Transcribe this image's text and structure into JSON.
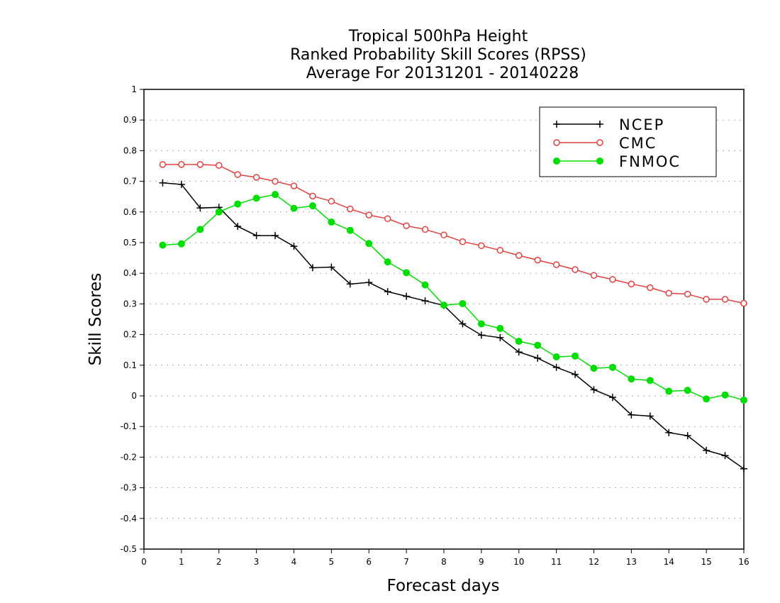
{
  "chart_data": {
    "type": "line",
    "title": [
      "Tropical 500hPa Height",
      "Ranked Probability Skill Scores (RPSS)",
      "Average For 20131201 - 20140228"
    ],
    "xlabel": "Forecast days",
    "ylabel": "Skill Scores",
    "xlim": [
      0,
      16
    ],
    "ylim": [
      -0.5,
      1
    ],
    "xticks": [
      "0",
      "1",
      "2",
      "3",
      "4",
      "5",
      "6",
      "7",
      "8",
      "9",
      "10",
      "11",
      "12",
      "13",
      "14",
      "15",
      "16"
    ],
    "yticks": [
      "-0.5",
      "-0.4",
      "-0.3",
      "-0.2",
      "-0.1",
      "0",
      "0.1",
      "0.2",
      "0.3",
      "0.4",
      "0.5",
      "0.6",
      "0.7",
      "0.8",
      "0.9",
      "1"
    ],
    "grid": true,
    "legend_position": "top-right",
    "x": [
      0.5,
      1,
      1.5,
      2,
      2.5,
      3,
      3.5,
      4,
      4.5,
      5,
      5.5,
      6,
      6.5,
      7,
      7.5,
      8,
      8.5,
      9,
      9.5,
      10,
      10.5,
      11,
      11.5,
      12,
      12.5,
      13,
      13.5,
      14,
      14.5,
      15,
      15.5,
      16
    ],
    "series": [
      {
        "name": "NCEP",
        "color": "#000000",
        "marker": "plus",
        "values": [
          0.695,
          0.69,
          0.613,
          0.615,
          0.553,
          0.523,
          0.523,
          0.488,
          0.418,
          0.42,
          0.365,
          0.37,
          0.34,
          0.325,
          0.31,
          0.295,
          0.235,
          0.198,
          0.19,
          0.143,
          0.123,
          0.093,
          0.07,
          0.02,
          -0.005,
          -0.062,
          -0.066,
          -0.12,
          -0.13,
          -0.178,
          -0.195,
          -0.238
        ]
      },
      {
        "name": "CMC",
        "color": "#e04040",
        "marker": "open-circle",
        "values": [
          0.755,
          0.755,
          0.755,
          0.752,
          0.722,
          0.713,
          0.7,
          0.685,
          0.652,
          0.635,
          0.61,
          0.59,
          0.578,
          0.555,
          0.543,
          0.525,
          0.503,
          0.49,
          0.475,
          0.458,
          0.443,
          0.428,
          0.412,
          0.393,
          0.38,
          0.365,
          0.353,
          0.335,
          0.332,
          0.315,
          0.315,
          0.302
        ]
      },
      {
        "name": "FNMOC",
        "color": "#00dd00",
        "marker": "filled-circle",
        "values": [
          0.492,
          0.496,
          0.543,
          0.6,
          0.626,
          0.645,
          0.657,
          0.612,
          0.62,
          0.567,
          0.54,
          0.497,
          0.437,
          0.402,
          0.362,
          0.296,
          0.301,
          0.235,
          0.22,
          0.178,
          0.165,
          0.127,
          0.13,
          0.09,
          0.093,
          0.055,
          0.05,
          0.015,
          0.018,
          -0.01,
          0.003,
          -0.014
        ]
      }
    ]
  }
}
